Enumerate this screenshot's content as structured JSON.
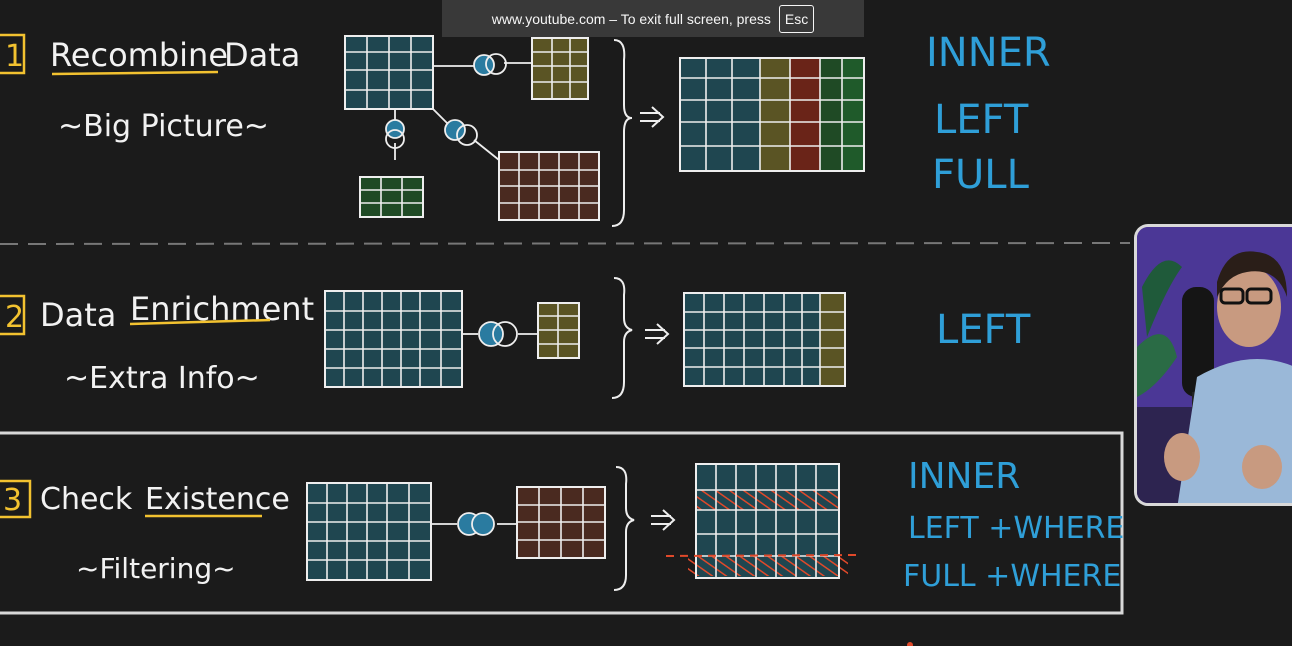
{
  "banner": {
    "text": "www.youtube.com – To exit full screen, press",
    "key": "Esc"
  },
  "sections": [
    {
      "number": "1",
      "title_part1": "Recombine",
      "title_part2": "Data",
      "subtitle": "~Big Picture~",
      "joins": [
        "INNER",
        "LEFT",
        "FULL"
      ]
    },
    {
      "number": "2",
      "title_part1": "Data",
      "title_part2": "Enrichment",
      "subtitle": "~Extra Info~",
      "joins": [
        "LEFT"
      ]
    },
    {
      "number": "3",
      "title_part1": "Check",
      "title_part2": "Existence",
      "subtitle": "~Filtering~",
      "joins": [
        "INNER",
        "LEFT +WHERE",
        "FULL +WHERE"
      ]
    }
  ],
  "colors": {
    "background": "#1b1b1b",
    "chalk": "#f2f2f2",
    "number_yellow": "#f2c230",
    "join_blue": "#2f9fd8",
    "table_teal": "#1f4650",
    "table_olive": "#5a5424",
    "table_brown": "#4a2a20",
    "table_green": "#1f4a25",
    "table_red": "#6a2418",
    "hatch_red": "#e0492a"
  }
}
